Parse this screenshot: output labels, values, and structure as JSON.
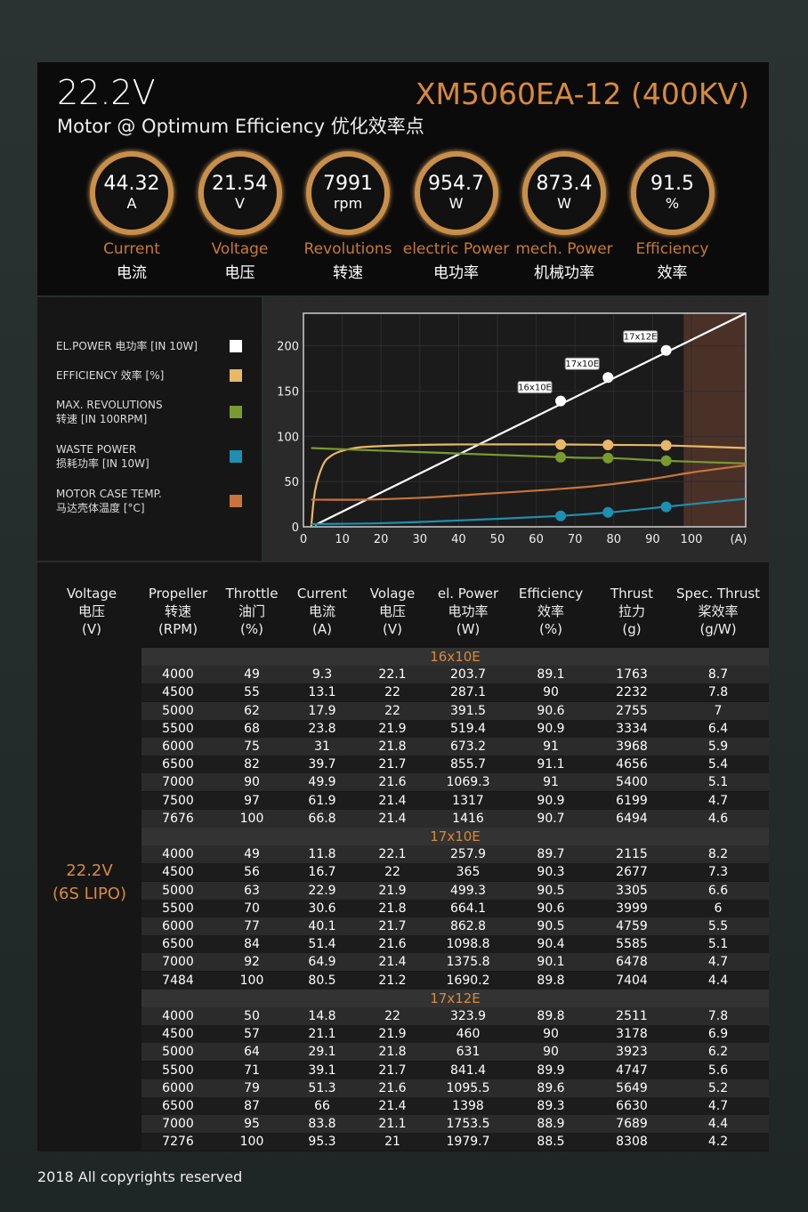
{
  "header": {
    "voltage": "22.2V",
    "model": "XM5060EA-12 (400KV)",
    "subtitle": "Motor @ Optimum Efficiency  优化效率点"
  },
  "stats": [
    {
      "value": "44.32",
      "unit": "A",
      "en": "Current",
      "cn": "电流"
    },
    {
      "value": "21.54",
      "unit": "V",
      "en": "Voltage",
      "cn": "电压"
    },
    {
      "value": "7991",
      "unit": "rpm",
      "en": "Revolutions",
      "cn": "转速"
    },
    {
      "value": "954.7",
      "unit": "W",
      "en": "electric Power",
      "cn": "电功率"
    },
    {
      "value": "873.4",
      "unit": "W",
      "en": "mech. Power",
      "cn": "机械功率"
    },
    {
      "value": "91.5",
      "unit": "%",
      "en": "Efficiency",
      "cn": "效率"
    }
  ],
  "legend": [
    {
      "l1": "EL.POWER 电功率 [IN 10W]",
      "l2": "",
      "color": "#ffffff"
    },
    {
      "l1": "EFFICIENCY 效率 [%]",
      "l2": "",
      "color": "#e8b868"
    },
    {
      "l1": "MAX. REVOLUTIONS",
      "l2": "转速 [IN 100RPM]",
      "color": "#7a9a30"
    },
    {
      "l1": "WASTE POWER",
      "l2": "损耗功率 [IN 10W]",
      "color": "#1e8fb0"
    },
    {
      "l1": "MOTOR CASE TEMP.",
      "l2": "马达壳体温度 [°C]",
      "color": "#c8743a"
    }
  ],
  "chart_data": {
    "type": "line",
    "xlabel": "(A)",
    "xlim": [
      0,
      114
    ],
    "ylim": [
      0,
      236
    ],
    "xticks": [
      0,
      10,
      20,
      30,
      40,
      50,
      60,
      70,
      80,
      90,
      100
    ],
    "yticks": [
      0,
      50,
      100,
      150,
      200
    ],
    "grid": true,
    "shaded_region_x": [
      98,
      114
    ],
    "series": [
      {
        "key": "el_power",
        "color": "#ffffff",
        "x": [
          3,
          114
        ],
        "y": [
          2,
          236
        ],
        "markers": [
          [
            66.3,
            139,
            "16x10E"
          ],
          [
            78.5,
            165,
            "17x10E"
          ],
          [
            93.5,
            195,
            "17x12E"
          ]
        ]
      },
      {
        "key": "efficiency",
        "color": "#e8b868",
        "x": [
          2,
          3,
          5,
          7,
          10,
          15,
          25,
          40,
          66,
          80,
          93,
          114
        ],
        "y": [
          0,
          40,
          68,
          78,
          84,
          88,
          90,
          91,
          91,
          90.5,
          90,
          87
        ],
        "markers": [
          [
            66.3,
            91
          ],
          [
            78.5,
            90.5
          ],
          [
            93.5,
            90
          ]
        ]
      },
      {
        "key": "revolutions",
        "color": "#7a9a30",
        "x": [
          2,
          66,
          79,
          93,
          114
        ],
        "y": [
          87,
          77,
          76,
          73,
          70
        ],
        "markers": [
          [
            66.3,
            77
          ],
          [
            78.5,
            76
          ],
          [
            93.5,
            73
          ]
        ]
      },
      {
        "key": "waste_power",
        "color": "#1e8fb0",
        "x": [
          2,
          20,
          40,
          66,
          79,
          93,
          100,
          114
        ],
        "y": [
          3,
          4,
          7,
          12,
          16,
          22,
          25,
          31
        ],
        "markers": [
          [
            66.3,
            12
          ],
          [
            78.5,
            16
          ],
          [
            93.5,
            22
          ]
        ]
      },
      {
        "key": "temp",
        "color": "#c8743a",
        "x": [
          2,
          15,
          30,
          45,
          60,
          75,
          90,
          100,
          114
        ],
        "y": [
          30,
          30,
          32,
          36,
          40,
          45,
          53,
          60,
          68
        ],
        "markers": []
      }
    ]
  },
  "table": {
    "headers": [
      [
        "Voltage",
        "电压",
        "(V)"
      ],
      [
        "Propeller",
        "转速",
        "(RPM)"
      ],
      [
        "Throttle",
        "油门",
        "(%)"
      ],
      [
        "Current",
        "电流",
        "(A)"
      ],
      [
        "Volage",
        "电压",
        "(V)"
      ],
      [
        "el. Power",
        "电功率",
        "(W)"
      ],
      [
        "Efficiency",
        "效率",
        "(%)"
      ],
      [
        "Thrust",
        "拉力",
        "(g)"
      ],
      [
        "Spec. Thrust",
        "桨效率",
        "(g/W)"
      ]
    ],
    "voltage_label": [
      "22.2V",
      "(6S LIPO)"
    ],
    "sections": [
      {
        "name": "16x10E",
        "rows": [
          [
            "4000",
            "49",
            "9.3",
            "22.1",
            "203.7",
            "89.1",
            "1763",
            "8.7"
          ],
          [
            "4500",
            "55",
            "13.1",
            "22",
            "287.1",
            "90",
            "2232",
            "7.8"
          ],
          [
            "5000",
            "62",
            "17.9",
            "22",
            "391.5",
            "90.6",
            "2755",
            "7"
          ],
          [
            "5500",
            "68",
            "23.8",
            "21.9",
            "519.4",
            "90.9",
            "3334",
            "6.4"
          ],
          [
            "6000",
            "75",
            "31",
            "21.8",
            "673.2",
            "91",
            "3968",
            "5.9"
          ],
          [
            "6500",
            "82",
            "39.7",
            "21.7",
            "855.7",
            "91.1",
            "4656",
            "5.4"
          ],
          [
            "7000",
            "90",
            "49.9",
            "21.6",
            "1069.3",
            "91",
            "5400",
            "5.1"
          ],
          [
            "7500",
            "97",
            "61.9",
            "21.4",
            "1317",
            "90.9",
            "6199",
            "4.7"
          ],
          [
            "7676",
            "100",
            "66.8",
            "21.4",
            "1416",
            "90.7",
            "6494",
            "4.6"
          ]
        ]
      },
      {
        "name": "17x10E",
        "rows": [
          [
            "4000",
            "49",
            "11.8",
            "22.1",
            "257.9",
            "89.7",
            "2115",
            "8.2"
          ],
          [
            "4500",
            "56",
            "16.7",
            "22",
            "365",
            "90.3",
            "2677",
            "7.3"
          ],
          [
            "5000",
            "63",
            "22.9",
            "21.9",
            "499.3",
            "90.5",
            "3305",
            "6.6"
          ],
          [
            "5500",
            "70",
            "30.6",
            "21.8",
            "664.1",
            "90.6",
            "3999",
            "6"
          ],
          [
            "6000",
            "77",
            "40.1",
            "21.7",
            "862.8",
            "90.5",
            "4759",
            "5.5"
          ],
          [
            "6500",
            "84",
            "51.4",
            "21.6",
            "1098.8",
            "90.4",
            "5585",
            "5.1"
          ],
          [
            "7000",
            "92",
            "64.9",
            "21.4",
            "1375.8",
            "90.1",
            "6478",
            "4.7"
          ],
          [
            "7484",
            "100",
            "80.5",
            "21.2",
            "1690.2",
            "89.8",
            "7404",
            "4.4"
          ]
        ]
      },
      {
        "name": "17x12E",
        "rows": [
          [
            "4000",
            "50",
            "14.8",
            "22",
            "323.9",
            "89.8",
            "2511",
            "7.8"
          ],
          [
            "4500",
            "57",
            "21.1",
            "21.9",
            "460",
            "90",
            "3178",
            "6.9"
          ],
          [
            "5000",
            "64",
            "29.1",
            "21.8",
            "631",
            "90",
            "3923",
            "6.2"
          ],
          [
            "5500",
            "71",
            "39.1",
            "21.7",
            "841.4",
            "89.9",
            "4747",
            "5.6"
          ],
          [
            "6000",
            "79",
            "51.3",
            "21.6",
            "1095.5",
            "89.6",
            "5649",
            "5.2"
          ],
          [
            "6500",
            "87",
            "66",
            "21.4",
            "1398",
            "89.3",
            "6630",
            "4.7"
          ],
          [
            "7000",
            "95",
            "83.8",
            "21.1",
            "1753.5",
            "88.9",
            "7689",
            "4.4"
          ],
          [
            "7276",
            "100",
            "95.3",
            "21",
            "1979.7",
            "88.5",
            "8308",
            "4.2"
          ]
        ]
      }
    ]
  },
  "footer": "2018 All copyrights reserved"
}
